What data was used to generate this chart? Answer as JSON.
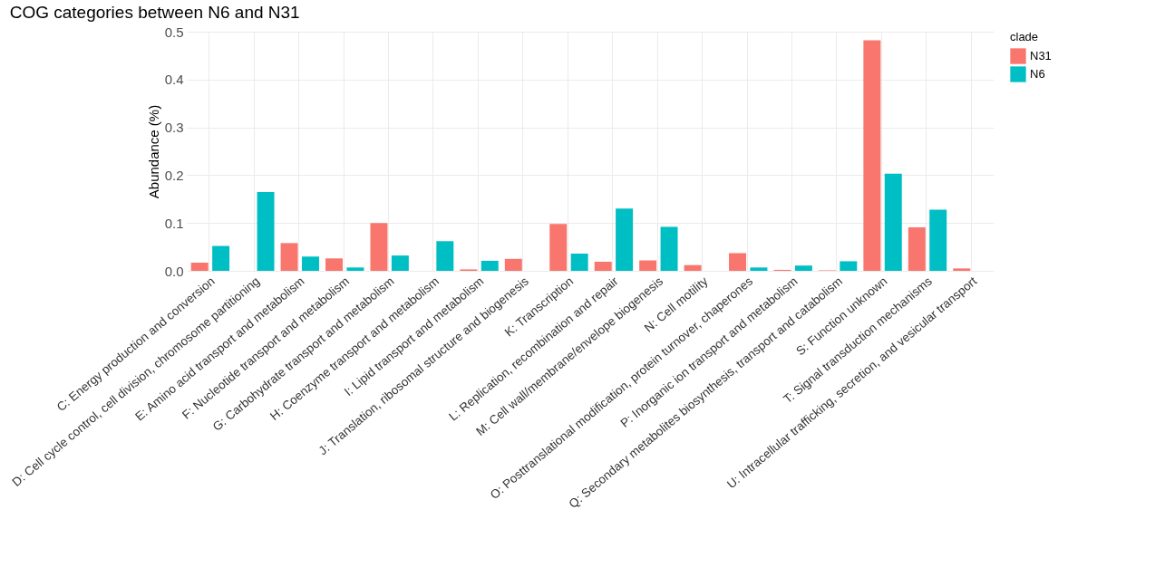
{
  "chart_data": {
    "type": "bar",
    "title": "COG categories between N6 and N31",
    "ylabel": "Abundance (%)",
    "legend_title": "clade",
    "legend": "right",
    "grid": true,
    "categories": [
      "C: Energy production and conversion",
      "D: Cell cycle control, cell division, chromosome partitioning",
      "E: Amino acid transport and metabolism",
      "F: Nucleotide transport and metabolism",
      "G: Carbohydrate transport and metabolism",
      "H: Coenzyme transport and metabolism",
      "I: Lipid transport and metabolism",
      "J: Translation, ribosomal structure and biogenesis",
      "K: Transcription",
      "L: Replication, recombination and repair",
      "M: Cell wall/membrane/envelope biogenesis",
      "N: Cell motility",
      "O: Posttranslational modification, protein turnover, chaperones",
      "P: Inorganic ion transport and metabolism",
      "Q: Secondary metabolites biosynthesis, transport and catabolism",
      "S: Function unknown",
      "T: Signal transduction mechanisms",
      "U: Intracellular trafficking, secretion, and vesicular transport"
    ],
    "series": [
      {
        "name": "N31",
        "color": "#f8766d",
        "values": [
          0.017,
          null,
          0.058,
          0.026,
          0.1,
          null,
          0.003,
          0.025,
          0.098,
          0.019,
          0.022,
          0.012,
          0.037,
          0.002,
          0.001,
          0.482,
          0.091,
          0.005
        ]
      },
      {
        "name": "N6",
        "color": "#00bfc4",
        "values": [
          0.052,
          0.165,
          0.03,
          0.007,
          0.032,
          0.062,
          0.021,
          null,
          0.036,
          0.13,
          0.092,
          null,
          0.007,
          0.011,
          0.02,
          0.203,
          0.128,
          null
        ]
      }
    ],
    "ylim": [
      0,
      0.5
    ],
    "yticks": [
      {
        "value": 0,
        "label": "0.0"
      },
      0.1,
      0.2,
      0.3,
      0.4,
      0.5
    ]
  }
}
